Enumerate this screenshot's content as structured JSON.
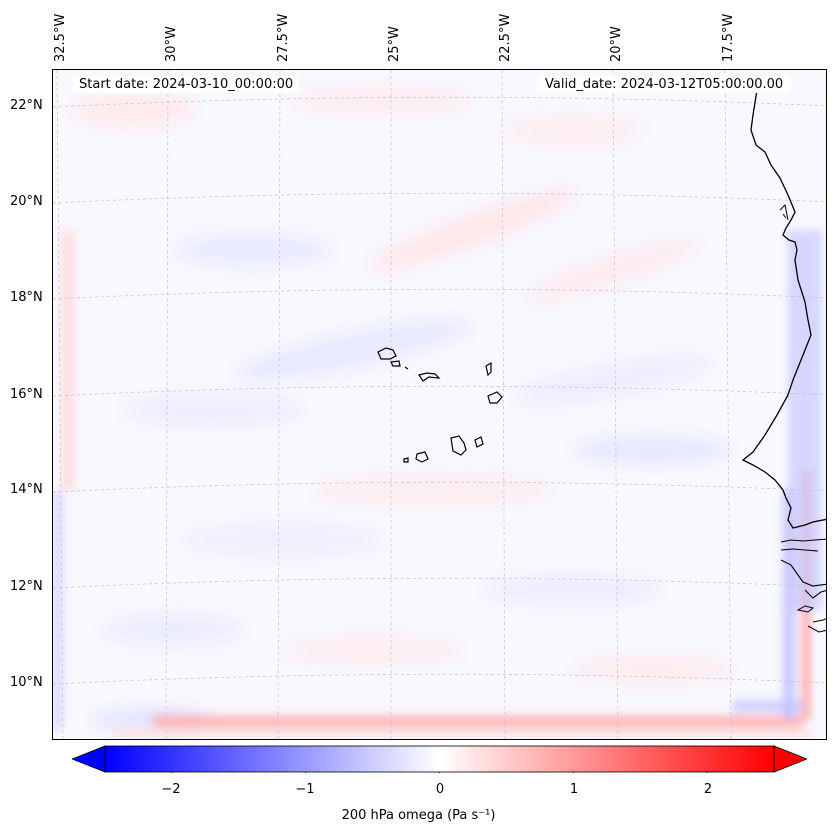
{
  "map": {
    "start_date": "Start date: 2024-03-10_00:00:00",
    "valid_date": "Valid_date: 2024-03-12T05:00:00.00",
    "longitude_labels": [
      "32.5°W",
      "30°W",
      "27.5°W",
      "25°W",
      "22.5°W",
      "20°W",
      "17.5°W"
    ],
    "latitude_labels": [
      "22°N",
      "20°N",
      "18°N",
      "16°N",
      "14°N",
      "12°N",
      "10°N"
    ],
    "field": "200 hPa omega",
    "colors": {
      "negative": "#0000ff",
      "neutral": "#ffffff",
      "positive": "#ff0000",
      "coast": "#000000",
      "grid": "#b8b8b8"
    }
  },
  "colorbar": {
    "ticks": [
      "−2",
      "−1",
      "0",
      "1",
      "2"
    ],
    "tick_values": [
      -2,
      -1,
      0,
      1,
      2
    ],
    "range": [
      -2.5,
      2.5
    ],
    "label": "200 hPa omega (Pa s⁻¹)"
  }
}
